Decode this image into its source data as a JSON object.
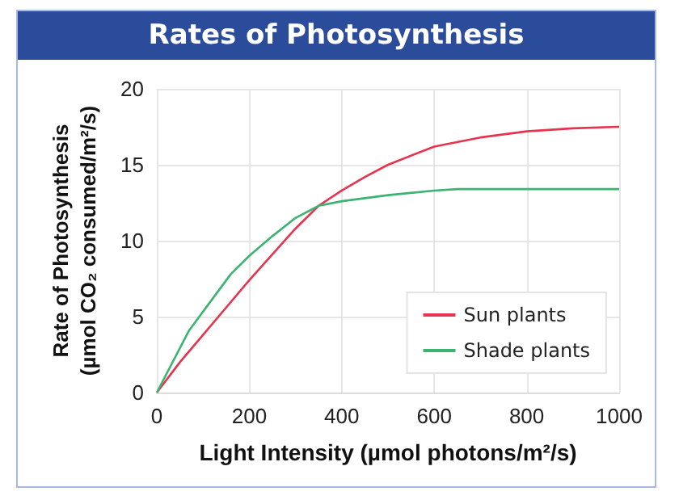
{
  "chart_data": {
    "type": "line",
    "title": "Rates of Photosynthesis",
    "xlabel": "Light Intensity (µmol photons/m²/s)",
    "ylabel": "Rate of Photosynthesis\n(µmol CO₂ consumed/m²/s)",
    "xlim": [
      0,
      1000
    ],
    "xticks": [
      0,
      200,
      400,
      600,
      800,
      1000
    ],
    "ylim": [
      0,
      20
    ],
    "yticks": [
      0,
      5,
      10,
      15,
      20
    ],
    "grid": true,
    "legend": "bottom right",
    "marker": "none",
    "line_style": "solid",
    "series": [
      {
        "name": "Sun plants",
        "color": "#e8334f",
        "x": [
          0,
          50,
          100,
          150,
          200,
          250,
          300,
          350,
          400,
          450,
          500,
          600,
          700,
          800,
          900,
          1000
        ],
        "values": [
          0,
          2.0,
          3.8,
          5.6,
          7.4,
          9.1,
          10.8,
          12.3,
          13.3,
          14.2,
          15,
          16.2,
          16.8,
          17.2,
          17.4,
          17.5
        ]
      },
      {
        "name": "Shade plants",
        "color": "#3cb371",
        "x": [
          0,
          70,
          160,
          200,
          250,
          300,
          350,
          400,
          500,
          600,
          650,
          800,
          1000
        ],
        "values": [
          0,
          4.1,
          7.8,
          9.0,
          10.3,
          11.5,
          12.3,
          12.6,
          13.0,
          13.3,
          13.4,
          13.4,
          13.4
        ]
      }
    ]
  }
}
